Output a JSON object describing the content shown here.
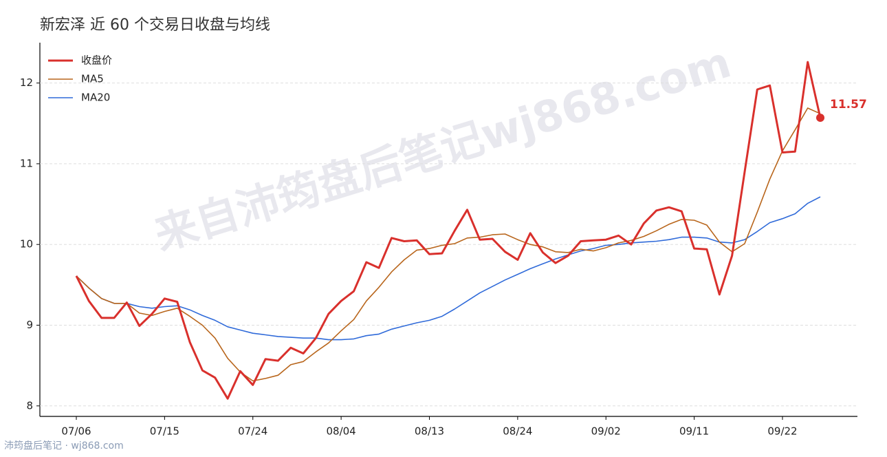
{
  "chart_data": {
    "type": "line",
    "title": "新宏泽 近 60 个交易日收盘与均线",
    "watermark": "来自沛筠盘后笔记wj868.com",
    "source": "沛筠盘后笔记 · wj868.com",
    "categories": [
      "07/06",
      null,
      null,
      null,
      null,
      null,
      null,
      "07/15",
      null,
      null,
      null,
      null,
      null,
      null,
      "07/24",
      null,
      null,
      null,
      null,
      null,
      null,
      "08/04",
      null,
      null,
      null,
      null,
      null,
      null,
      "08/13",
      null,
      null,
      null,
      null,
      null,
      null,
      "08/24",
      null,
      null,
      null,
      null,
      null,
      null,
      "09/02",
      null,
      null,
      null,
      null,
      null,
      null,
      "09/11",
      null,
      null,
      null,
      null,
      null,
      null,
      "09/22",
      null,
      null,
      null
    ],
    "series": [
      {
        "name": "收盘价",
        "color": "#d9302c",
        "width": 3,
        "values": [
          9.61,
          9.3,
          9.09,
          9.09,
          9.28,
          8.99,
          9.14,
          9.33,
          9.29,
          8.79,
          8.44,
          8.35,
          8.09,
          8.43,
          8.26,
          8.58,
          8.56,
          8.72,
          8.65,
          8.84,
          9.14,
          9.3,
          9.42,
          9.78,
          9.71,
          10.08,
          10.04,
          10.05,
          9.88,
          9.89,
          10.17,
          10.43,
          10.06,
          10.07,
          9.91,
          9.81,
          10.14,
          9.9,
          9.77,
          9.86,
          10.04,
          10.05,
          10.06,
          10.11,
          10.0,
          10.26,
          10.42,
          10.46,
          10.41,
          9.95,
          9.94,
          9.38,
          9.86,
          10.9,
          11.92,
          11.97,
          11.14,
          11.15,
          12.26,
          11.57
        ]
      },
      {
        "name": "MA5",
        "color": "#b8651b",
        "width": 1.6,
        "values": [
          9.61,
          9.46,
          9.33,
          9.27,
          9.27,
          9.15,
          9.12,
          9.17,
          9.21,
          9.11,
          9.0,
          8.84,
          8.59,
          8.42,
          8.31,
          8.34,
          8.38,
          8.51,
          8.55,
          8.67,
          8.78,
          8.93,
          9.07,
          9.3,
          9.47,
          9.66,
          9.81,
          9.93,
          9.95,
          9.99,
          10.01,
          10.08,
          10.09,
          10.12,
          10.13,
          10.06,
          10.0,
          9.97,
          9.91,
          9.9,
          9.94,
          9.92,
          9.96,
          10.02,
          10.05,
          10.1,
          10.17,
          10.25,
          10.31,
          10.3,
          10.24,
          10.03,
          9.91,
          10.01,
          10.4,
          10.81,
          11.16,
          11.42,
          11.69,
          11.62
        ]
      },
      {
        "name": "MA20",
        "color": "#2f6ad9",
        "width": 1.6,
        "values": [
          9.61,
          9.46,
          9.33,
          9.27,
          9.27,
          9.23,
          9.21,
          9.23,
          9.24,
          9.19,
          9.12,
          9.06,
          8.98,
          8.94,
          8.9,
          8.88,
          8.86,
          8.85,
          8.84,
          8.84,
          8.82,
          8.82,
          8.83,
          8.87,
          8.89,
          8.95,
          8.99,
          9.03,
          9.06,
          9.11,
          9.2,
          9.3,
          9.4,
          9.48,
          9.56,
          9.63,
          9.7,
          9.76,
          9.82,
          9.87,
          9.92,
          9.95,
          9.99,
          10.0,
          10.02,
          10.03,
          10.04,
          10.06,
          10.09,
          10.09,
          10.08,
          10.03,
          10.02,
          10.06,
          10.16,
          10.27,
          10.32,
          10.38,
          10.51,
          10.59
        ]
      }
    ],
    "ylim": [
      7.87,
      12.5
    ],
    "yticks": [
      8,
      9,
      10,
      11,
      12
    ],
    "grid": true,
    "legend": "upper left"
  }
}
